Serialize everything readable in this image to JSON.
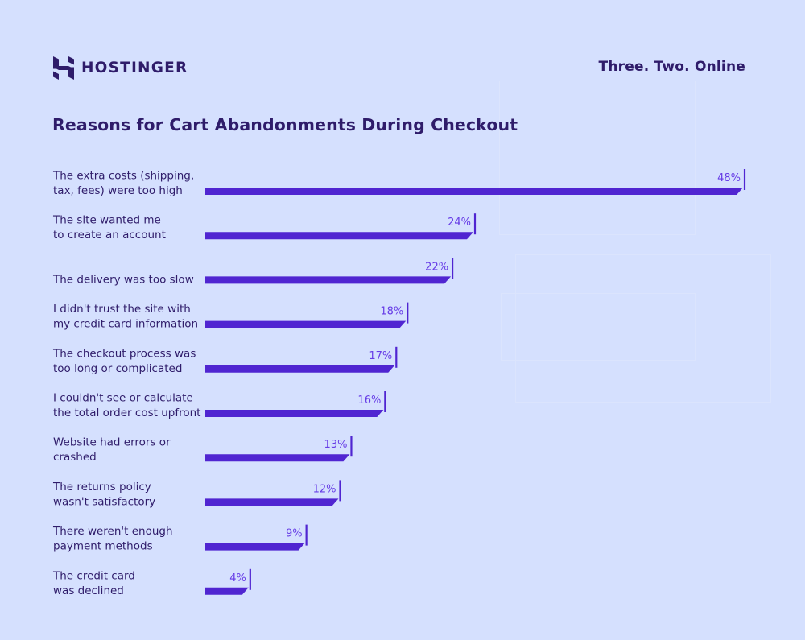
{
  "brand": {
    "name": "HOSTINGER",
    "logo": "hostinger-logo-icon"
  },
  "tagline": "Three. Two. Online",
  "colors": {
    "background": "#d5e0fe",
    "bar": "#5025d1",
    "text": "#2f1c6a",
    "value_text": "#673de6"
  },
  "chart_data": {
    "type": "bar",
    "orientation": "horizontal",
    "title": "Reasons for Cart Abandonments During Checkout",
    "xlabel": "",
    "ylabel": "",
    "xlim": [
      0,
      48
    ],
    "grid": false,
    "legend": "none",
    "categories": [
      [
        "The extra costs (shipping,",
        "tax, fees) were too high"
      ],
      [
        "The site wanted me",
        "to create an account"
      ],
      [
        "The delivery was too slow"
      ],
      [
        "I didn't trust the site with",
        "my credit card information"
      ],
      [
        "The checkout process was",
        "too long or complicated"
      ],
      [
        "I couldn't see or calculate",
        "the total order cost upfront"
      ],
      [
        "Website had errors or",
        "crashed"
      ],
      [
        "The returns policy",
        "wasn't satisfactory"
      ],
      [
        "There weren't enough",
        "payment methods"
      ],
      [
        "The credit card",
        "was declined"
      ]
    ],
    "values": [
      48,
      24,
      22,
      18,
      17,
      16,
      13,
      12,
      9,
      4
    ],
    "value_labels": [
      "48%",
      "24%",
      "22%",
      "18%",
      "17%",
      "16%",
      "13%",
      "12%",
      "9%",
      "4%"
    ]
  }
}
